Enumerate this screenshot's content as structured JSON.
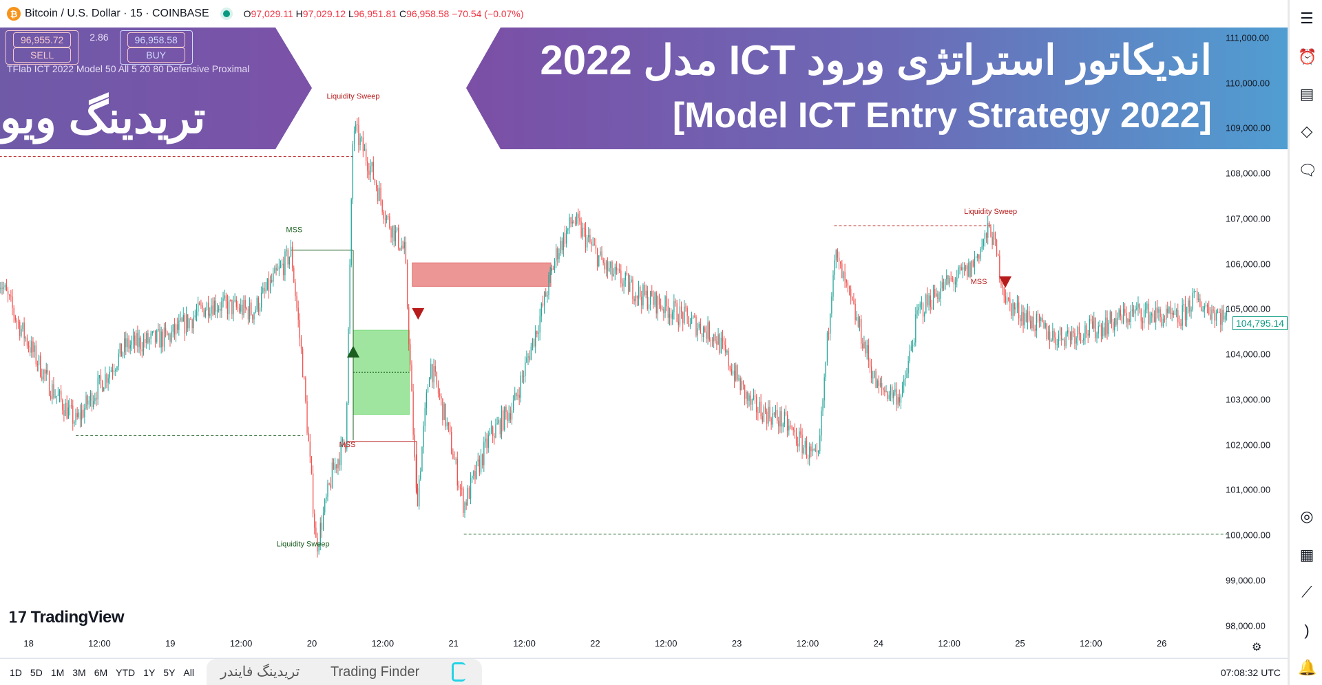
{
  "header": {
    "symbol": "Bitcoin / U.S. Dollar · 15 · COINBASE",
    "btc_icon": "₿",
    "O": "97,029.11",
    "H": "97,029.12",
    "L": "96,951.81",
    "C": "96,958.58",
    "change": "−70.54 (−0.07%)"
  },
  "trade_buttons": {
    "sell_price": "96,955.72",
    "sell_label": "SELL",
    "spread": "2.86",
    "buy_price": "96,958.58",
    "buy_label": "BUY"
  },
  "indicator_label": "TFlab ICT 2022 Model 50 All 5 20 80 Defensive Proximal",
  "banner": {
    "left_title": "تریدینگ ویو",
    "right_title_fa": "اندیکاتور استراتژی ورود ICT مدل 2022",
    "right_title_en": "[Model ICT Entry Strategy 2022]",
    "colors": {
      "purple": "#7b4fa6",
      "blue": "#4ea2d4"
    }
  },
  "chart_data": {
    "type": "candlestick",
    "y_ticks": [
      "111,000.00",
      "110,000.00",
      "109,000.00",
      "108,000.00",
      "107,000.00",
      "106,000.00",
      "105,000.00",
      "104,000.00",
      "103,000.00",
      "102,000.00",
      "101,000.00",
      "100,000.00",
      "99,000.00",
      "98,000.00"
    ],
    "ylim": [
      97800,
      111200
    ],
    "x_ticks": [
      "18",
      "12:00",
      "19",
      "12:00",
      "20",
      "12:00",
      "21",
      "12:00",
      "22",
      "12:00",
      "23",
      "12:00",
      "24",
      "12:00",
      "25",
      "12:00",
      "26"
    ],
    "current_price": "104,795.14",
    "price_path": [
      [
        "17 19:00",
        105690
      ],
      [
        "17 22:00",
        104750
      ],
      [
        "18 03:45",
        103260
      ],
      [
        "18 08:00",
        102500
      ],
      [
        "18 10:45",
        103070
      ],
      [
        "18 16:30",
        104190
      ],
      [
        "18 23:45",
        104380
      ],
      [
        "19 06:45",
        105130
      ],
      [
        "19 14:00",
        104940
      ],
      [
        "19 20:30",
        106250
      ],
      [
        "19 22:30",
        103630
      ],
      [
        "20 00:45",
        99720
      ],
      [
        "20 03:30",
        101400
      ],
      [
        "20 05:45",
        102140
      ],
      [
        "20 07:00",
        109040
      ],
      [
        "20 10:00",
        108110
      ],
      [
        "20 12:45",
        106990
      ],
      [
        "20 15:45",
        106250
      ],
      [
        "20 17:45",
        100650
      ],
      [
        "20 20:00",
        103820
      ],
      [
        "20 22:45",
        102500
      ],
      [
        "21 01:45",
        100650
      ],
      [
        "21 06:00",
        102140
      ],
      [
        "21 10:15",
        102890
      ],
      [
        "21 14:30",
        104750
      ],
      [
        "21 17:30",
        106250
      ],
      [
        "21 20:15",
        106990
      ],
      [
        "22 02:00",
        105870
      ],
      [
        "22 07:45",
        105310
      ],
      [
        "22 13:30",
        104940
      ],
      [
        "22 20:30",
        104380
      ],
      [
        "23 02:15",
        102890
      ],
      [
        "23 08:00",
        102500
      ],
      [
        "23 13:45",
        101570
      ],
      [
        "23 16:30",
        106250
      ],
      [
        "23 20:45",
        104570
      ],
      [
        "23 23:45",
        103260
      ],
      [
        "24 04:00",
        103070
      ],
      [
        "24 06:45",
        104940
      ],
      [
        "24 11:00",
        105500
      ],
      [
        "24 15:30",
        105870
      ],
      [
        "24 19:00",
        106800
      ],
      [
        "24 21:45",
        105130
      ],
      [
        "25 05:45",
        104380
      ],
      [
        "25 12:45",
        104570
      ],
      [
        "25 20:00",
        104940
      ],
      [
        "26 03:00",
        104750
      ],
      [
        "26 05:15",
        105220
      ],
      [
        "26 11:00",
        104795
      ]
    ],
    "colors": {
      "up": "#26a69a",
      "down": "#ef5350",
      "bull": "#1b5e20",
      "bear": "#b71c1c"
    },
    "levels": [
      {
        "price": 108370,
        "from": "17 19:00",
        "to": "20 07:00",
        "color": "#b71c1c",
        "style": "dashed"
      },
      {
        "price": 102200,
        "from": "18 08:00",
        "to": "19 22:30",
        "color": "#1b5e20",
        "style": "dashed"
      },
      {
        "price": 100020,
        "from": "21 01:45",
        "to": "26 11:30",
        "color": "#1b5e20",
        "style": "dashed"
      },
      {
        "price": 106840,
        "from": "23 16:30",
        "to": "24 19:00",
        "color": "#b71c1c",
        "style": "dashed"
      },
      {
        "price": 106300,
        "from": "19 20:30",
        "to": "20 07:00",
        "color": "#1b5e20",
        "style": "solid"
      },
      {
        "price": 102070,
        "from": "20 05:45",
        "to": "20 17:45",
        "color": "#b71c1c",
        "style": "solid"
      }
    ],
    "zones": [
      {
        "top": 104530,
        "bottom": 102670,
        "from": "20 07:00",
        "to": "20 16:30",
        "color": "#7fdc7f"
      },
      {
        "top": 106020,
        "bottom": 105500,
        "from": "20 17:00",
        "to": "21 16:30",
        "color": "#e57373"
      }
    ],
    "labels": [
      {
        "text": "Liquidity Sweep",
        "time": "20 07:00",
        "price": 109650,
        "color": "#b71c1c"
      },
      {
        "text": "Liquidity Sweep",
        "time": "24 19:00",
        "price": 107100,
        "color": "#b71c1c"
      },
      {
        "text": "Liquidity Sweep",
        "time": "19 22:30",
        "price": 99750,
        "color": "#1b5e20"
      },
      {
        "text": "MSS",
        "time": "19 21:00",
        "price": 106700,
        "color": "#1b5e20"
      },
      {
        "text": "MSS",
        "time": "20 06:00",
        "price": 101950,
        "color": "#b71c1c"
      },
      {
        "text": "MSS",
        "time": "24 17:00",
        "price": 105550,
        "color": "#b71c1c"
      }
    ],
    "markers": [
      {
        "dir": "up",
        "time": "20 07:00",
        "price": 104050,
        "color": "#1b5e20"
      },
      {
        "dir": "down",
        "time": "20 18:00",
        "price": 104900,
        "color": "#b71c1c"
      },
      {
        "dir": "down",
        "time": "24 21:30",
        "price": 105600,
        "color": "#b71c1c"
      }
    ]
  },
  "tv_logo": "TradingView",
  "watermark": {
    "fa": "تریدینگ فایندر",
    "en": "Trading Finder"
  },
  "bottom": {
    "ranges": [
      "1D",
      "5D",
      "1M",
      "3M",
      "6M",
      "YTD",
      "1Y",
      "5Y",
      "All"
    ],
    "clock": "07:08:32 UTC"
  }
}
